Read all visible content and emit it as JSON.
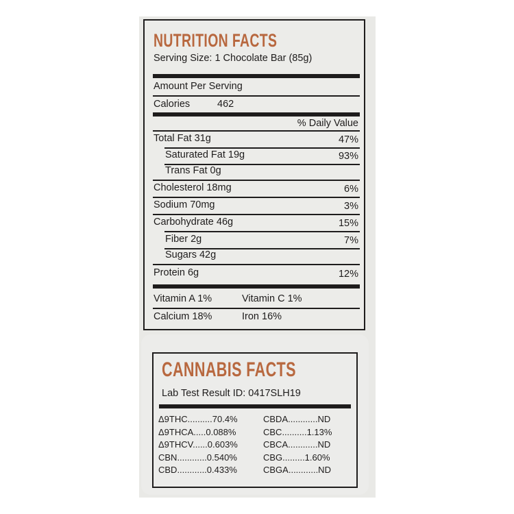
{
  "nutrition": {
    "title": "NUTRITION FACTS",
    "serving_size": "Serving Size: 1 Chocolate Bar (85g)",
    "amount_per_serving": "Amount Per Serving",
    "calories_label": "Calories",
    "calories_value": "462",
    "daily_value_header": "% Daily Value",
    "rows": [
      {
        "label": "Total Fat 31g",
        "dv": "47%"
      },
      {
        "label": "Saturated Fat 19g",
        "dv": "93%"
      },
      {
        "label": "Trans Fat 0g",
        "dv": ""
      },
      {
        "label": "Cholesterol  18mg",
        "dv": "6%"
      },
      {
        "label": "Sodium 70mg",
        "dv": "3%"
      },
      {
        "label": "Carbohydrate 46g",
        "dv": "15%"
      },
      {
        "label": "Fiber 2g",
        "dv": "7%"
      },
      {
        "label": "Sugars 42g",
        "dv": ""
      },
      {
        "label": "Protein 6g",
        "dv": "12%"
      }
    ],
    "vitamin_a": "Vitamin A 1%",
    "vitamin_c": "Vitamin C 1%",
    "calcium": "Calcium  18%",
    "iron": "Iron 16%"
  },
  "cannabis": {
    "title": "CANNABIS FACTS",
    "lab_id": "Lab Test Result ID: 0417SLH19",
    "left": [
      "Δ9THC..........70.4%",
      "Δ9THCA.....0.088%",
      "Δ9THCV......0.603%",
      "CBN............0.540%",
      "CBD............0.433%"
    ],
    "right": [
      "CBDA............ND",
      "CBC..........1.13%",
      "CBCA............ND",
      "CBG.........1.60%",
      "CBGA............ND"
    ]
  },
  "colors": {
    "title_accent": "#b8683f",
    "ink": "#1e1c1c"
  }
}
